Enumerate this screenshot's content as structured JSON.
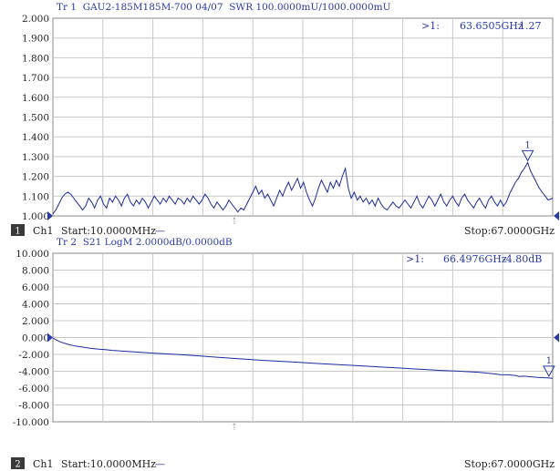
{
  "instrument": {
    "background": "#ffffff",
    "grid_color": "#c8c8c8",
    "trace_color": "#1c2b9c",
    "header_color": "#2a3aa8",
    "text_color": "#222222",
    "marker_color": "#2a3aa8",
    "channel_badge_bg": "#3a3a3a"
  },
  "chart_data": [
    {
      "type": "line",
      "title": "Tr 1  GAU2-185M185M-700 04/07  SWR 100.0000mU/1000.0000mU",
      "channel_badge": "1",
      "channel_label": "Ch1",
      "start_label": "Start:10.0000MHz",
      "span_dash": "—",
      "stop_label": "Stop:67.0000GHz",
      "xlim": [
        0.01,
        67.0
      ],
      "ylim": [
        1.0,
        2.0
      ],
      "y_ticks": [
        "2.000",
        "1.900",
        "1.800",
        "1.700",
        "1.600",
        "1.500",
        "1.400",
        "1.300",
        "1.200",
        "1.100",
        "1.000"
      ],
      "grid": true,
      "reference_value": 1.0,
      "marker": {
        "label": "1",
        "readout_prefix": ">1:",
        "readout_freq": "63.6505GHz",
        "readout_value": "1.27",
        "x": 63.6505,
        "y": 1.27
      },
      "series": [
        {
          "points": [
            [
              0.01,
              1.01
            ],
            [
              0.4,
              1.03
            ],
            [
              0.8,
              1.06
            ],
            [
              1.2,
              1.09
            ],
            [
              1.6,
              1.11
            ],
            [
              2.0,
              1.12
            ],
            [
              2.4,
              1.11
            ],
            [
              2.8,
              1.09
            ],
            [
              3.2,
              1.07
            ],
            [
              3.6,
              1.05
            ],
            [
              4.0,
              1.03
            ],
            [
              4.4,
              1.05
            ],
            [
              4.8,
              1.09
            ],
            [
              5.2,
              1.07
            ],
            [
              5.6,
              1.04
            ],
            [
              6.0,
              1.08
            ],
            [
              6.4,
              1.1
            ],
            [
              6.8,
              1.06
            ],
            [
              7.2,
              1.04
            ],
            [
              7.6,
              1.09
            ],
            [
              8.0,
              1.07
            ],
            [
              8.4,
              1.1
            ],
            [
              8.8,
              1.08
            ],
            [
              9.2,
              1.05
            ],
            [
              9.6,
              1.09
            ],
            [
              10.0,
              1.11
            ],
            [
              10.4,
              1.07
            ],
            [
              10.8,
              1.05
            ],
            [
              11.2,
              1.08
            ],
            [
              11.6,
              1.06
            ],
            [
              12.0,
              1.09
            ],
            [
              12.4,
              1.07
            ],
            [
              12.8,
              1.04
            ],
            [
              13.2,
              1.07
            ],
            [
              13.6,
              1.1
            ],
            [
              14.0,
              1.08
            ],
            [
              14.4,
              1.06
            ],
            [
              14.8,
              1.09
            ],
            [
              15.2,
              1.07
            ],
            [
              15.6,
              1.1
            ],
            [
              16.0,
              1.08
            ],
            [
              16.4,
              1.06
            ],
            [
              16.8,
              1.09
            ],
            [
              17.2,
              1.08
            ],
            [
              17.6,
              1.06
            ],
            [
              18.0,
              1.09
            ],
            [
              18.4,
              1.07
            ],
            [
              18.8,
              1.1
            ],
            [
              19.2,
              1.08
            ],
            [
              19.6,
              1.06
            ],
            [
              20.0,
              1.08
            ],
            [
              20.4,
              1.11
            ],
            [
              20.8,
              1.09
            ],
            [
              21.2,
              1.06
            ],
            [
              21.6,
              1.04
            ],
            [
              22.0,
              1.07
            ],
            [
              22.4,
              1.05
            ],
            [
              22.8,
              1.03
            ],
            [
              23.2,
              1.05
            ],
            [
              23.6,
              1.08
            ],
            [
              24.0,
              1.06
            ],
            [
              24.4,
              1.04
            ],
            [
              24.8,
              1.02
            ],
            [
              25.2,
              1.04
            ],
            [
              25.6,
              1.03
            ],
            [
              26.0,
              1.06
            ],
            [
              26.4,
              1.09
            ],
            [
              26.8,
              1.12
            ],
            [
              27.2,
              1.15
            ],
            [
              27.6,
              1.11
            ],
            [
              28.0,
              1.13
            ],
            [
              28.4,
              1.09
            ],
            [
              28.8,
              1.11
            ],
            [
              29.2,
              1.08
            ],
            [
              29.6,
              1.05
            ],
            [
              30.0,
              1.09
            ],
            [
              30.4,
              1.13
            ],
            [
              30.8,
              1.1
            ],
            [
              31.2,
              1.14
            ],
            [
              31.6,
              1.17
            ],
            [
              32.0,
              1.13
            ],
            [
              32.4,
              1.16
            ],
            [
              32.8,
              1.19
            ],
            [
              33.2,
              1.14
            ],
            [
              33.6,
              1.17
            ],
            [
              34.0,
              1.12
            ],
            [
              34.4,
              1.08
            ],
            [
              34.8,
              1.05
            ],
            [
              35.2,
              1.09
            ],
            [
              35.6,
              1.14
            ],
            [
              36.0,
              1.18
            ],
            [
              36.4,
              1.15
            ],
            [
              36.8,
              1.12
            ],
            [
              37.2,
              1.17
            ],
            [
              37.6,
              1.14
            ],
            [
              38.0,
              1.18
            ],
            [
              38.4,
              1.15
            ],
            [
              38.8,
              1.2
            ],
            [
              39.2,
              1.24
            ],
            [
              39.6,
              1.14
            ],
            [
              40.0,
              1.09
            ],
            [
              40.4,
              1.12
            ],
            [
              40.8,
              1.08
            ],
            [
              41.2,
              1.1
            ],
            [
              41.6,
              1.07
            ],
            [
              42.0,
              1.09
            ],
            [
              42.4,
              1.06
            ],
            [
              42.8,
              1.08
            ],
            [
              43.2,
              1.05
            ],
            [
              43.6,
              1.09
            ],
            [
              44.0,
              1.06
            ],
            [
              44.4,
              1.04
            ],
            [
              44.8,
              1.03
            ],
            [
              45.2,
              1.05
            ],
            [
              45.6,
              1.07
            ],
            [
              46.0,
              1.05
            ],
            [
              46.4,
              1.04
            ],
            [
              46.8,
              1.06
            ],
            [
              47.2,
              1.08
            ],
            [
              47.6,
              1.06
            ],
            [
              48.0,
              1.04
            ],
            [
              48.4,
              1.07
            ],
            [
              48.8,
              1.1
            ],
            [
              49.2,
              1.06
            ],
            [
              49.6,
              1.04
            ],
            [
              50.0,
              1.07
            ],
            [
              50.4,
              1.1
            ],
            [
              50.8,
              1.08
            ],
            [
              51.2,
              1.05
            ],
            [
              51.6,
              1.08
            ],
            [
              52.0,
              1.11
            ],
            [
              52.4,
              1.07
            ],
            [
              52.8,
              1.05
            ],
            [
              53.2,
              1.08
            ],
            [
              53.6,
              1.1
            ],
            [
              54.0,
              1.07
            ],
            [
              54.4,
              1.05
            ],
            [
              54.8,
              1.09
            ],
            [
              55.2,
              1.11
            ],
            [
              55.6,
              1.08
            ],
            [
              56.0,
              1.06
            ],
            [
              56.4,
              1.04
            ],
            [
              56.8,
              1.07
            ],
            [
              57.2,
              1.09
            ],
            [
              57.6,
              1.06
            ],
            [
              58.0,
              1.04
            ],
            [
              58.4,
              1.08
            ],
            [
              58.8,
              1.1
            ],
            [
              59.2,
              1.07
            ],
            [
              59.6,
              1.05
            ],
            [
              60.0,
              1.08
            ],
            [
              60.4,
              1.05
            ],
            [
              60.8,
              1.07
            ],
            [
              61.2,
              1.11
            ],
            [
              61.6,
              1.14
            ],
            [
              62.0,
              1.17
            ],
            [
              62.4,
              1.19
            ],
            [
              62.8,
              1.22
            ],
            [
              63.2,
              1.24
            ],
            [
              63.6505,
              1.27
            ],
            [
              64.0,
              1.23
            ],
            [
              64.4,
              1.2
            ],
            [
              64.8,
              1.17
            ],
            [
              65.2,
              1.14
            ],
            [
              65.6,
              1.12
            ],
            [
              66.0,
              1.1
            ],
            [
              66.4,
              1.08
            ],
            [
              67.0,
              1.09
            ]
          ]
        }
      ]
    },
    {
      "type": "line",
      "title": "Tr 2  S21 LogM 2.0000dB/0.0000dB",
      "channel_badge": "2",
      "channel_label": "Ch1",
      "start_label": "Start:10.0000MHz",
      "span_dash": "—",
      "stop_label": "Stop:67.0000GHz",
      "xlim": [
        0.01,
        67.0
      ],
      "ylim": [
        -10.0,
        10.0
      ],
      "y_ticks": [
        "10.000",
        "8.000",
        "6.000",
        "4.000",
        "2.000",
        "0.000",
        "-2.000",
        "-4.000",
        "-6.000",
        "-8.000",
        "-10.000"
      ],
      "grid": true,
      "reference_value": 0.0,
      "marker": {
        "label": "1",
        "readout_prefix": ">1:",
        "readout_freq": "66.4976GHz",
        "readout_value": "-4.80dB",
        "x": 66.4976,
        "y": -4.8
      },
      "series": [
        {
          "points": [
            [
              0.01,
              -0.05
            ],
            [
              0.5,
              -0.3
            ],
            [
              1.0,
              -0.52
            ],
            [
              2.0,
              -0.8
            ],
            [
              3.0,
              -1.0
            ],
            [
              4.0,
              -1.14
            ],
            [
              5.0,
              -1.26
            ],
            [
              6.0,
              -1.36
            ],
            [
              7.0,
              -1.44
            ],
            [
              8.0,
              -1.52
            ],
            [
              10.0,
              -1.65
            ],
            [
              12.0,
              -1.77
            ],
            [
              14.0,
              -1.88
            ],
            [
              16.0,
              -1.98
            ],
            [
              18.0,
              -2.08
            ],
            [
              20.0,
              -2.2
            ],
            [
              22.0,
              -2.33
            ],
            [
              24.0,
              -2.47
            ],
            [
              26.0,
              -2.58
            ],
            [
              28.0,
              -2.7
            ],
            [
              30.0,
              -2.8
            ],
            [
              32.0,
              -2.9
            ],
            [
              34.0,
              -3.0
            ],
            [
              36.0,
              -3.1
            ],
            [
              38.0,
              -3.2
            ],
            [
              40.0,
              -3.3
            ],
            [
              42.0,
              -3.4
            ],
            [
              44.0,
              -3.5
            ],
            [
              46.0,
              -3.6
            ],
            [
              48.0,
              -3.7
            ],
            [
              50.0,
              -3.8
            ],
            [
              52.0,
              -3.9
            ],
            [
              54.0,
              -3.98
            ],
            [
              56.0,
              -4.06
            ],
            [
              57.0,
              -4.12
            ],
            [
              58.0,
              -4.2
            ],
            [
              59.0,
              -4.3
            ],
            [
              60.0,
              -4.4
            ],
            [
              61.0,
              -4.42
            ],
            [
              62.0,
              -4.5
            ],
            [
              62.5,
              -4.62
            ],
            [
              63.0,
              -4.58
            ],
            [
              64.0,
              -4.65
            ],
            [
              65.0,
              -4.72
            ],
            [
              66.4976,
              -4.8
            ],
            [
              67.0,
              -4.84
            ]
          ]
        }
      ]
    }
  ]
}
